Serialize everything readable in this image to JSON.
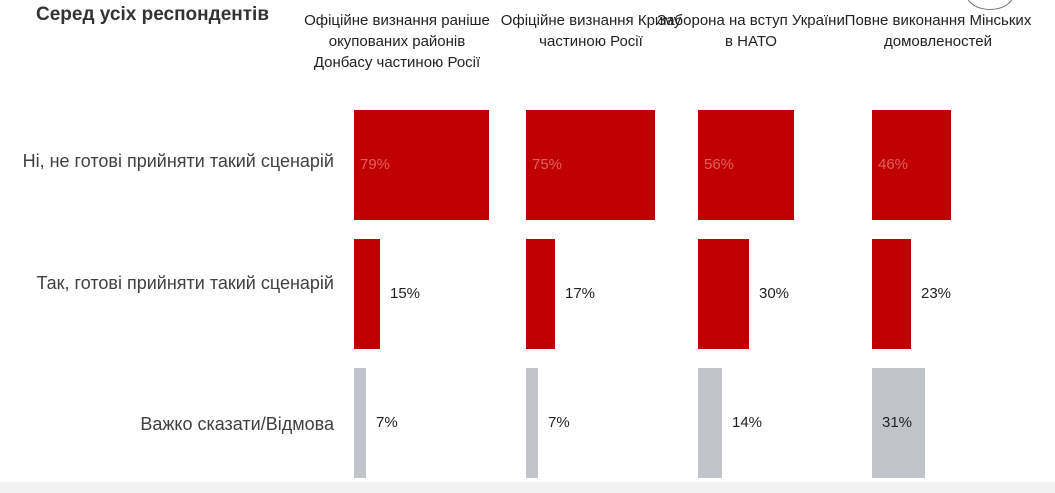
{
  "title": "Серед усіх респондентів",
  "columns": [
    "Офіційне визнання раніше окупованих районів Донбасу частиною Росії",
    "Офіційне визнання Криму частиною Росії",
    "Заборона на вступ України в НАТО",
    "Повне виконання Мінських домовленостей"
  ],
  "rows": [
    "Ні, не готові прийняти такий сценарій",
    "Так, готові прийняти такий сценарій",
    "Важко сказати/Відмова"
  ],
  "colors": {
    "red": "#c00000",
    "grey": "#c0c4c8",
    "label_on_red": "#e06060"
  },
  "chart_data": {
    "type": "bar",
    "title": "Серед усіх респондентів",
    "categories": [
      "Офіційне визнання раніше окупованих районів Донбасу частиною Росії",
      "Офіційне визнання Криму частиною Росії",
      "Заборона на вступ України в НАТО",
      "Повне виконання Мінських домовленостей"
    ],
    "series": [
      {
        "name": "Ні, не готові прийняти такий сценарій",
        "values": [
          79,
          75,
          56,
          46
        ],
        "labels": [
          "79%",
          "75%",
          "56%",
          "46%"
        ],
        "color": "#c00000"
      },
      {
        "name": "Так, готові прийняти такий сценарій",
        "values": [
          15,
          17,
          30,
          23
        ],
        "labels": [
          "15%",
          "17%",
          "30%",
          "23%"
        ],
        "color": "#c00000"
      },
      {
        "name": "Важко сказати/Відмова",
        "values": [
          7,
          7,
          14,
          31
        ],
        "labels": [
          "7%",
          "7%",
          "14%",
          "31%"
        ],
        "color": "#c0c4c8"
      }
    ],
    "unit": "%",
    "grid": false,
    "legend": "none"
  }
}
